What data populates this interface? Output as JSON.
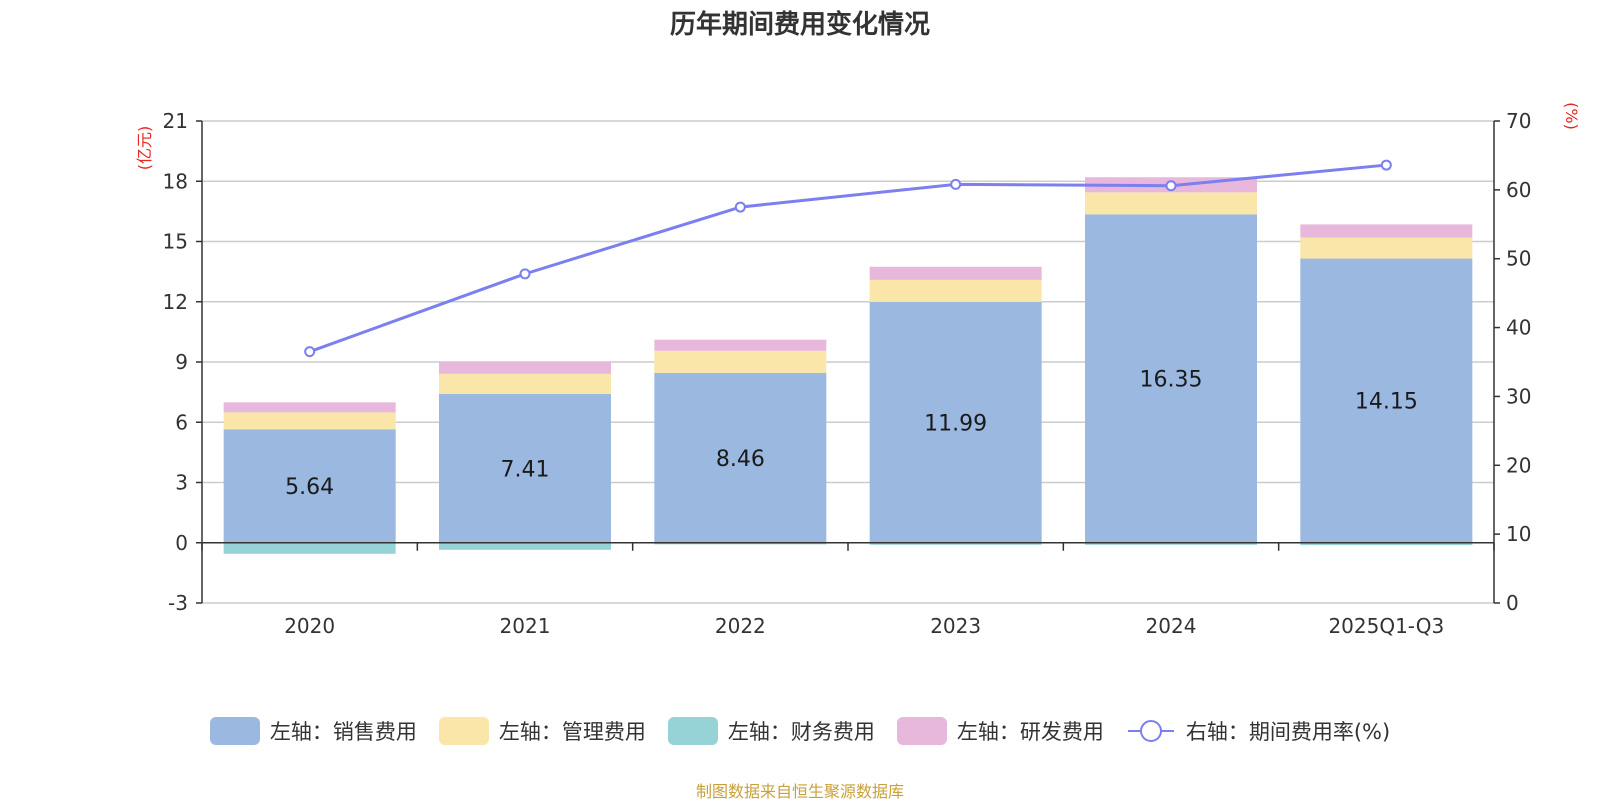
{
  "title": "历年期间费用变化情况",
  "source": "制图数据来自恒生聚源数据库",
  "chart_data": {
    "type": "bar",
    "stacked": true,
    "categories": [
      "2020",
      "2021",
      "2022",
      "2023",
      "2024",
      "2025Q1-Q3"
    ],
    "left_axis": {
      "unit": "(亿元)",
      "min": -3,
      "max": 21,
      "ticks": [
        -3,
        0,
        3,
        6,
        9,
        12,
        15,
        18,
        21
      ]
    },
    "right_axis": {
      "unit": "(%)",
      "min": 0,
      "max": 70,
      "ticks": [
        0,
        10,
        20,
        30,
        40,
        50,
        60,
        70
      ]
    },
    "series": [
      {
        "name": "左轴：销售费用",
        "color": "#9bb8e1",
        "values": [
          5.64,
          7.41,
          8.46,
          11.99,
          16.35,
          14.15
        ],
        "show_labels": true
      },
      {
        "name": "左轴：管理费用",
        "color": "#f9e6a8",
        "values": [
          0.85,
          1.0,
          1.1,
          1.1,
          1.1,
          1.05
        ],
        "show_labels": false
      },
      {
        "name": "左轴：财务费用",
        "color": "#96d3d6",
        "values": [
          -0.55,
          -0.35,
          -0.08,
          -0.1,
          -0.1,
          -0.12
        ],
        "show_labels": false
      },
      {
        "name": "左轴：研发费用",
        "color": "#e7b8dc",
        "values": [
          0.5,
          0.6,
          0.55,
          0.65,
          0.75,
          0.65
        ],
        "show_labels": false
      }
    ],
    "line": {
      "name": "右轴：期间费用率(%)",
      "color": "#7b7fef",
      "values": [
        36.5,
        47.8,
        57.5,
        60.8,
        60.6,
        63.6
      ]
    },
    "grid": true,
    "legend_position": "bottom"
  }
}
